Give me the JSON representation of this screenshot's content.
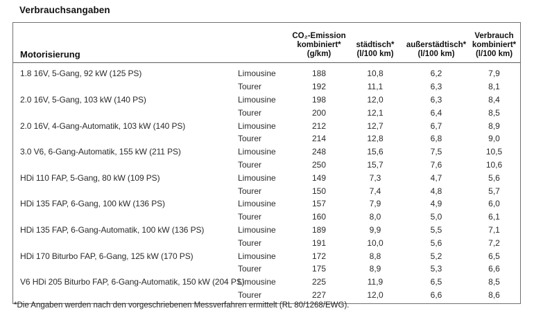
{
  "page": {
    "title": "Verbrauchsangaben",
    "footnote": "*Die Angaben werden nach den vorgeschriebenen Messverfahren ermittelt (RL 80/1268/EWG)."
  },
  "table": {
    "columns": [
      {
        "id": "motorisierung",
        "label": "Motorisierung"
      },
      {
        "id": "variant",
        "label": ""
      },
      {
        "id": "co2",
        "lines": [
          "CO₂-Emission",
          "kombiniert*",
          "(g/km)"
        ]
      },
      {
        "id": "staedtisch",
        "lines": [
          "städtisch*",
          "(l/100 km)"
        ]
      },
      {
        "id": "ausserstaedtisch",
        "lines": [
          "außerstädtisch*",
          "(l/100 km)"
        ]
      },
      {
        "id": "verbrauch_kombiniert",
        "lines": [
          "Verbrauch",
          "kombiniert*",
          "(l/100 km)"
        ]
      }
    ],
    "rows": [
      {
        "engine": "1.8 16V, 5-Gang, 92 kW (125 PS)",
        "variant": "Limousine",
        "co2": "188",
        "urban": "10,8",
        "extra_urban": "6,2",
        "combined": "7,9"
      },
      {
        "engine": "",
        "variant": "Tourer",
        "co2": "192",
        "urban": "11,1",
        "extra_urban": "6,3",
        "combined": "8,1"
      },
      {
        "engine": "2.0 16V, 5-Gang, 103 kW (140 PS)",
        "variant": "Limousine",
        "co2": "198",
        "urban": "12,0",
        "extra_urban": "6,3",
        "combined": "8,4"
      },
      {
        "engine": "",
        "variant": "Tourer",
        "co2": "200",
        "urban": "12,1",
        "extra_urban": "6,4",
        "combined": "8,5"
      },
      {
        "engine": "2.0 16V, 4-Gang-Automatik, 103 kW (140 PS)",
        "variant": "Limousine",
        "co2": "212",
        "urban": "12,7",
        "extra_urban": "6,7",
        "combined": "8,9"
      },
      {
        "engine": "",
        "variant": "Tourer",
        "co2": "214",
        "urban": "12,8",
        "extra_urban": "6,8",
        "combined": "9,0"
      },
      {
        "engine": "3.0 V6, 6-Gang-Automatik, 155 kW (211 PS)",
        "variant": "Limousine",
        "co2": "248",
        "urban": "15,6",
        "extra_urban": "7,5",
        "combined": "10,5"
      },
      {
        "engine": "",
        "variant": "Tourer",
        "co2": "250",
        "urban": "15,7",
        "extra_urban": "7,6",
        "combined": "10,6"
      },
      {
        "engine": "HDi 110 FAP, 5-Gang, 80 kW (109 PS)",
        "variant": "Limousine",
        "co2": "149",
        "urban": "7,3",
        "extra_urban": "4,7",
        "combined": "5,6"
      },
      {
        "engine": "",
        "variant": "Tourer",
        "co2": "150",
        "urban": "7,4",
        "extra_urban": "4,8",
        "combined": "5,7"
      },
      {
        "engine": "HDi 135 FAP, 6-Gang, 100 kW (136 PS)",
        "variant": "Limousine",
        "co2": "157",
        "urban": "7,9",
        "extra_urban": "4,9",
        "combined": "6,0"
      },
      {
        "engine": "",
        "variant": "Tourer",
        "co2": "160",
        "urban": "8,0",
        "extra_urban": "5,0",
        "combined": "6,1"
      },
      {
        "engine": "HDi 135 FAP, 6-Gang-Automatik, 100 kW (136 PS)",
        "variant": "Limousine",
        "co2": "189",
        "urban": "9,9",
        "extra_urban": "5,5",
        "combined": "7,1"
      },
      {
        "engine": "",
        "variant": "Tourer",
        "co2": "191",
        "urban": "10,0",
        "extra_urban": "5,6",
        "combined": "7,2"
      },
      {
        "engine": "HDi 170 Biturbo FAP, 6-Gang, 125 kW (170 PS)",
        "variant": "Limousine",
        "co2": "172",
        "urban": "8,8",
        "extra_urban": "5,2",
        "combined": "6,5"
      },
      {
        "engine": "",
        "variant": "Tourer",
        "co2": "175",
        "urban": "8,9",
        "extra_urban": "5,3",
        "combined": "6,6"
      },
      {
        "engine": "V6 HDi 205 Biturbo FAP, 6-Gang-Automatik, 150 kW (204 PS)",
        "variant": "Limousine",
        "co2": "225",
        "urban": "11,9",
        "extra_urban": "6,5",
        "combined": "8,5"
      },
      {
        "engine": "",
        "variant": "Tourer",
        "co2": "227",
        "urban": "12,0",
        "extra_urban": "6,6",
        "combined": "8,6"
      }
    ]
  }
}
